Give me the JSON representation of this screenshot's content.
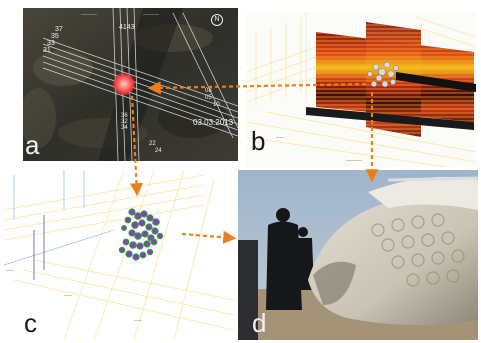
{
  "panels": {
    "a": {
      "label": "a",
      "date": "03.03.2013",
      "line_numbers_left": [
        "37",
        "35",
        "33",
        "31"
      ],
      "line_numbers_top": [
        "41",
        "43"
      ],
      "line_numbers_mid": [
        "36",
        "32",
        "34"
      ],
      "line_numbers_right": [
        "08",
        "05",
        "10"
      ],
      "line_numbers_bottom": [
        "22",
        "24"
      ],
      "compass": "N"
    },
    "b": {
      "label": "b"
    },
    "c": {
      "label": "c"
    },
    "d": {
      "label": "d"
    }
  },
  "colors": {
    "arrow": "#e9801f",
    "marker": "#ff3b3b",
    "radar_red": "#c7261b",
    "radar_yellow": "#f5c21c",
    "cloud_green": "#2f9a42",
    "cloud_purple": "#8a3fb6"
  }
}
